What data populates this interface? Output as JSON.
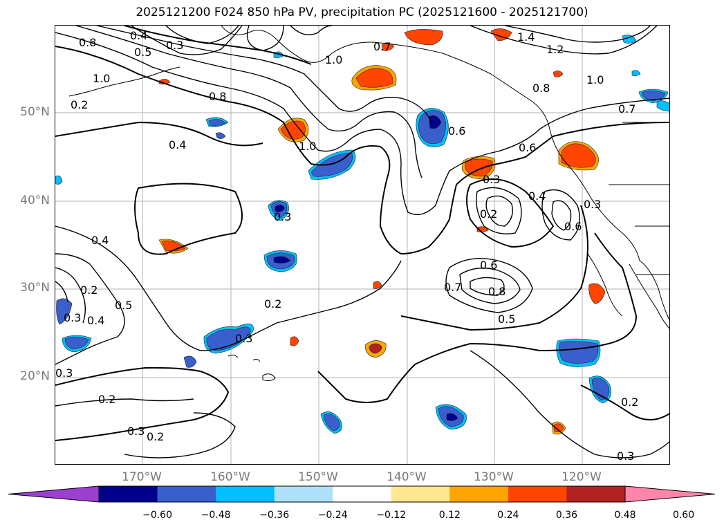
{
  "title": "2025121200 F024 850 hPa PV, precipitation PC (2025121600 - 2025121700)",
  "map": {
    "lat_labels": [
      "50°N",
      "40°N",
      "30°N",
      "20°N"
    ],
    "lon_labels": [
      "170°W",
      "160°W",
      "150°W",
      "140°W",
      "130°W",
      "120°W"
    ],
    "gridlines": true
  },
  "contour_labels": [
    "0.8",
    "0.4",
    "0.3",
    "0.5",
    "1.0",
    "0.7",
    "1.4",
    "1.2",
    "0.2",
    "0.8",
    "0.4",
    "1.0",
    "0.6",
    "0.6",
    "0.3",
    "0.2",
    "0.4",
    "0.6",
    "0.3",
    "0.4",
    "0.2",
    "0.5",
    "0.3",
    "0.4",
    "0.2",
    "0.3",
    "0.6",
    "0.8",
    "0.7",
    "0.5",
    "0.2",
    "0.3",
    "0.2",
    "0.2",
    "0.3",
    "0.3",
    "0.3",
    "1.0",
    "0.8",
    "0.7",
    "1.0"
  ],
  "colorbar": {
    "ticks": [
      "−0.60",
      "−0.48",
      "−0.36",
      "−0.24",
      "−0.12",
      "0.12",
      "0.24",
      "0.36",
      "0.48",
      "0.60"
    ],
    "colors": [
      "#9b3fd1",
      "#00008b",
      "#3a5fcd",
      "#00bfff",
      "#aee2fa",
      "#ffffff",
      "#ffe88f",
      "#ffa500",
      "#ff4500",
      "#b22222",
      "#ff85aa"
    ]
  }
}
